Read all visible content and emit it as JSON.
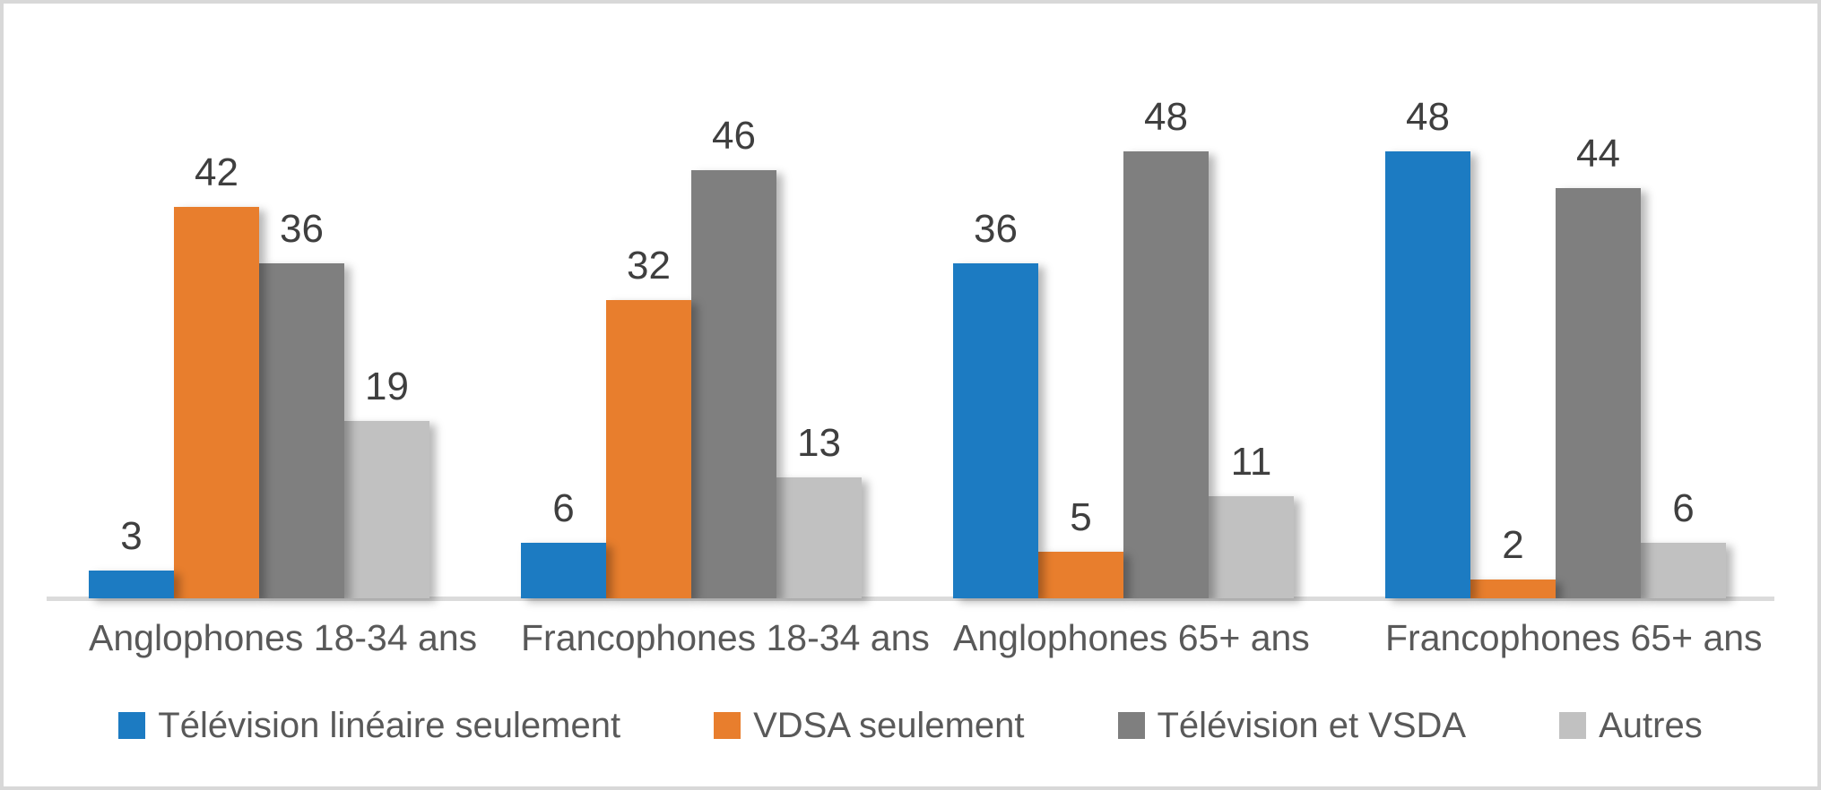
{
  "chart_data": {
    "type": "bar",
    "categories": [
      "Anglophones 18-34 ans",
      "Francophones 18-34 ans",
      "Anglophones 65+ ans",
      "Francophones 65+ ans"
    ],
    "series": [
      {
        "name": "Télévision linéaire seulement",
        "color": "#1C7BC2",
        "values": [
          3,
          6,
          36,
          48
        ]
      },
      {
        "name": "VDSA seulement",
        "color": "#E87E2D",
        "values": [
          42,
          32,
          5,
          2
        ]
      },
      {
        "name": "Télévision et VSDA",
        "color": "#7F7F7F",
        "values": [
          36,
          46,
          48,
          44
        ]
      },
      {
        "name": "Autres",
        "color": "#C1C1C1",
        "values": [
          19,
          13,
          11,
          6
        ]
      }
    ],
    "title": "",
    "xlabel": "",
    "ylabel": "",
    "ylim": [
      0,
      50
    ],
    "grid": false,
    "axis_visible": false,
    "data_labels": true,
    "legend_position": "bottom",
    "colors": {
      "value_label_text": "#3F3F3F",
      "category_label_text": "#595959",
      "legend_text": "#595959",
      "axis_line": "#DBDBDB",
      "frame_border": "#D8D8D8",
      "background": "#FFFFFF"
    }
  }
}
